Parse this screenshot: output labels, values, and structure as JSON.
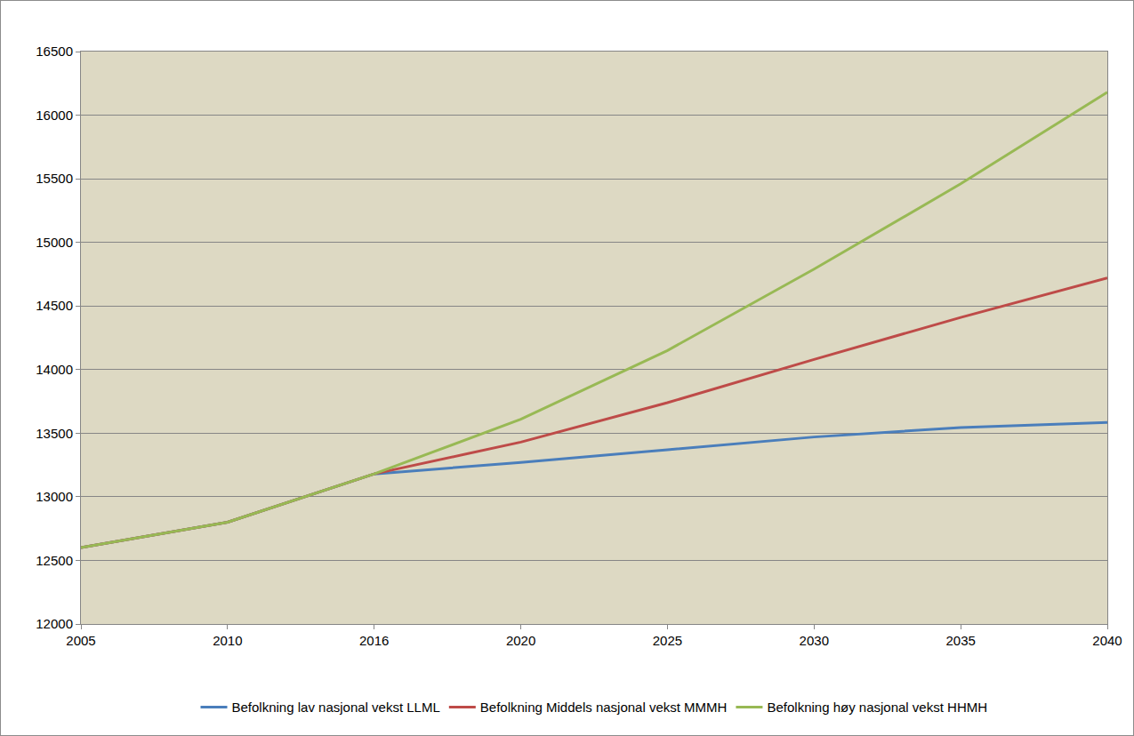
{
  "chart_data": {
    "type": "line",
    "categories": [
      "2005",
      "2010",
      "2016",
      "2020",
      "2025",
      "2030",
      "2035",
      "2040"
    ],
    "series": [
      {
        "name": "Befolkning lav nasjonal vekst LLML",
        "color": "#4a7ebb",
        "values": [
          12600,
          12800,
          13180,
          13270,
          13370,
          13470,
          13545,
          13585
        ]
      },
      {
        "name": "Befolkning Middels nasjonal vekst MMMH",
        "color": "#be4b48",
        "values": [
          12600,
          12800,
          13180,
          13430,
          13740,
          14080,
          14410,
          14720
        ]
      },
      {
        "name": "Befolkning høy nasjonal vekst HHMH",
        "color": "#98b954",
        "values": [
          12600,
          12800,
          13180,
          13610,
          14150,
          14790,
          15460,
          16180
        ]
      }
    ],
    "ylim": [
      12000,
      16500
    ],
    "yticks": [
      12000,
      12500,
      13000,
      13500,
      14000,
      14500,
      15000,
      15500,
      16000,
      16500
    ],
    "grid": true,
    "legend": "bottom"
  }
}
